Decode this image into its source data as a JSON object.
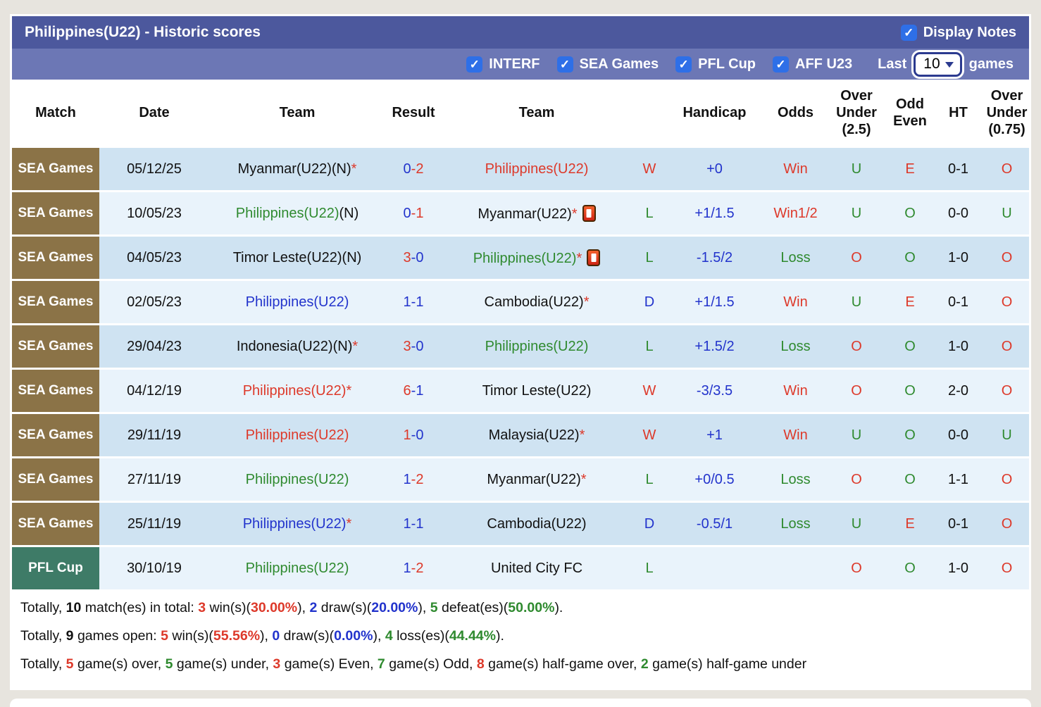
{
  "header": {
    "title": "Philippines(U22) - Historic scores",
    "display_notes_label": "Display Notes"
  },
  "filters": {
    "items": [
      "INTERF",
      "SEA Games",
      "PFL Cup",
      "AFF U23"
    ],
    "last_label": "Last",
    "last_value": "10",
    "games_label": "games"
  },
  "icons": {
    "checkmark": "✓",
    "red_card": "red-card-icon",
    "chevron": "chevron-down-icon"
  },
  "colors": {
    "titlebar": "#4c589d",
    "filterbar": "#6c77b5",
    "checkbox_blue": "#2e6fe7",
    "sea_badge": "#8b7347",
    "pfl_badge": "#3e7b67",
    "row_dark": "#cfe3f2",
    "row_light": "#e9f3fb",
    "win_red": "#dd392a",
    "draw_blue": "#2233cc",
    "loss_green": "#2f8a2f"
  },
  "table": {
    "columns": [
      "Match",
      "Date",
      "Team",
      "Result",
      "Team",
      "",
      "Handicap",
      "Odds",
      "Over Under (2.5)",
      "Odd Even",
      "HT",
      "Over Under (0.75)"
    ],
    "rows": [
      {
        "comp": "SEA Games",
        "comp_class": "sea",
        "date": "05/12/25",
        "t1": {
          "name": "Myanmar(U22)",
          "extra": "(N)",
          "color": "black",
          "star": true,
          "card": false
        },
        "res": {
          "a": "0",
          "b": "2",
          "ca": "blue",
          "cb": "red"
        },
        "t2": {
          "name": "Philippines(U22)",
          "extra": "",
          "color": "red",
          "star": false,
          "card": false
        },
        "wdl": {
          "t": "W",
          "c": "red"
        },
        "hcp": "+0",
        "odds": {
          "t": "Win",
          "c": "red"
        },
        "ou25": {
          "t": "U",
          "c": "green"
        },
        "oe": {
          "t": "E",
          "c": "red"
        },
        "ht": "0-1",
        "ou075": {
          "t": "O",
          "c": "red"
        }
      },
      {
        "comp": "SEA Games",
        "comp_class": "sea",
        "date": "10/05/23",
        "t1": {
          "name": "Philippines(U22)",
          "extra": "(N)",
          "color": "green",
          "star": false,
          "card": false
        },
        "res": {
          "a": "0",
          "b": "1",
          "ca": "blue",
          "cb": "red"
        },
        "t2": {
          "name": "Myanmar(U22)",
          "extra": "",
          "color": "black",
          "star": true,
          "card": true
        },
        "wdl": {
          "t": "L",
          "c": "green"
        },
        "hcp": "+1/1.5",
        "odds": {
          "t": "Win1/2",
          "c": "red"
        },
        "ou25": {
          "t": "U",
          "c": "green"
        },
        "oe": {
          "t": "O",
          "c": "green"
        },
        "ht": "0-0",
        "ou075": {
          "t": "U",
          "c": "green"
        }
      },
      {
        "comp": "SEA Games",
        "comp_class": "sea",
        "date": "04/05/23",
        "t1": {
          "name": "Timor Leste(U22)",
          "extra": "(N)",
          "color": "black",
          "star": false,
          "card": false
        },
        "res": {
          "a": "3",
          "b": "0",
          "ca": "red",
          "cb": "blue"
        },
        "t2": {
          "name": "Philippines(U22)",
          "extra": "",
          "color": "green",
          "star": true,
          "card": true
        },
        "wdl": {
          "t": "L",
          "c": "green"
        },
        "hcp": "-1.5/2",
        "odds": {
          "t": "Loss",
          "c": "green"
        },
        "ou25": {
          "t": "O",
          "c": "red"
        },
        "oe": {
          "t": "O",
          "c": "green"
        },
        "ht": "1-0",
        "ou075": {
          "t": "O",
          "c": "red"
        }
      },
      {
        "comp": "SEA Games",
        "comp_class": "sea",
        "date": "02/05/23",
        "t1": {
          "name": "Philippines(U22)",
          "extra": "",
          "color": "blue",
          "star": false,
          "card": false
        },
        "res": {
          "a": "1",
          "b": "1",
          "ca": "blue",
          "cb": "blue"
        },
        "t2": {
          "name": "Cambodia(U22)",
          "extra": "",
          "color": "black",
          "star": true,
          "card": false
        },
        "wdl": {
          "t": "D",
          "c": "blue"
        },
        "hcp": "+1/1.5",
        "odds": {
          "t": "Win",
          "c": "red"
        },
        "ou25": {
          "t": "U",
          "c": "green"
        },
        "oe": {
          "t": "E",
          "c": "red"
        },
        "ht": "0-1",
        "ou075": {
          "t": "O",
          "c": "red"
        }
      },
      {
        "comp": "SEA Games",
        "comp_class": "sea",
        "date": "29/04/23",
        "t1": {
          "name": "Indonesia(U22)",
          "extra": "(N)",
          "color": "black",
          "star": true,
          "card": false
        },
        "res": {
          "a": "3",
          "b": "0",
          "ca": "red",
          "cb": "blue"
        },
        "t2": {
          "name": "Philippines(U22)",
          "extra": "",
          "color": "green",
          "star": false,
          "card": false
        },
        "wdl": {
          "t": "L",
          "c": "green"
        },
        "hcp": "+1.5/2",
        "odds": {
          "t": "Loss",
          "c": "green"
        },
        "ou25": {
          "t": "O",
          "c": "red"
        },
        "oe": {
          "t": "O",
          "c": "green"
        },
        "ht": "1-0",
        "ou075": {
          "t": "O",
          "c": "red"
        }
      },
      {
        "comp": "SEA Games",
        "comp_class": "sea",
        "date": "04/12/19",
        "t1": {
          "name": "Philippines(U22)",
          "extra": "",
          "color": "red",
          "star": true,
          "card": false
        },
        "res": {
          "a": "6",
          "b": "1",
          "ca": "red",
          "cb": "blue"
        },
        "t2": {
          "name": "Timor Leste(U22)",
          "extra": "",
          "color": "black",
          "star": false,
          "card": false
        },
        "wdl": {
          "t": "W",
          "c": "red"
        },
        "hcp": "-3/3.5",
        "odds": {
          "t": "Win",
          "c": "red"
        },
        "ou25": {
          "t": "O",
          "c": "red"
        },
        "oe": {
          "t": "O",
          "c": "green"
        },
        "ht": "2-0",
        "ou075": {
          "t": "O",
          "c": "red"
        }
      },
      {
        "comp": "SEA Games",
        "comp_class": "sea",
        "date": "29/11/19",
        "t1": {
          "name": "Philippines(U22)",
          "extra": "",
          "color": "red",
          "star": false,
          "card": false
        },
        "res": {
          "a": "1",
          "b": "0",
          "ca": "red",
          "cb": "blue"
        },
        "t2": {
          "name": "Malaysia(U22)",
          "extra": "",
          "color": "black",
          "star": true,
          "card": false
        },
        "wdl": {
          "t": "W",
          "c": "red"
        },
        "hcp": "+1",
        "odds": {
          "t": "Win",
          "c": "red"
        },
        "ou25": {
          "t": "U",
          "c": "green"
        },
        "oe": {
          "t": "O",
          "c": "green"
        },
        "ht": "0-0",
        "ou075": {
          "t": "U",
          "c": "green"
        }
      },
      {
        "comp": "SEA Games",
        "comp_class": "sea",
        "date": "27/11/19",
        "t1": {
          "name": "Philippines(U22)",
          "extra": "",
          "color": "green",
          "star": false,
          "card": false
        },
        "res": {
          "a": "1",
          "b": "2",
          "ca": "blue",
          "cb": "red"
        },
        "t2": {
          "name": "Myanmar(U22)",
          "extra": "",
          "color": "black",
          "star": true,
          "card": false
        },
        "wdl": {
          "t": "L",
          "c": "green"
        },
        "hcp": "+0/0.5",
        "odds": {
          "t": "Loss",
          "c": "green"
        },
        "ou25": {
          "t": "O",
          "c": "red"
        },
        "oe": {
          "t": "O",
          "c": "green"
        },
        "ht": "1-1",
        "ou075": {
          "t": "O",
          "c": "red"
        }
      },
      {
        "comp": "SEA Games",
        "comp_class": "sea",
        "date": "25/11/19",
        "t1": {
          "name": "Philippines(U22)",
          "extra": "",
          "color": "blue",
          "star": true,
          "card": false
        },
        "res": {
          "a": "1",
          "b": "1",
          "ca": "blue",
          "cb": "blue"
        },
        "t2": {
          "name": "Cambodia(U22)",
          "extra": "",
          "color": "black",
          "star": false,
          "card": false
        },
        "wdl": {
          "t": "D",
          "c": "blue"
        },
        "hcp": "-0.5/1",
        "odds": {
          "t": "Loss",
          "c": "green"
        },
        "ou25": {
          "t": "U",
          "c": "green"
        },
        "oe": {
          "t": "E",
          "c": "red"
        },
        "ht": "0-1",
        "ou075": {
          "t": "O",
          "c": "red"
        }
      },
      {
        "comp": "PFL Cup",
        "comp_class": "pfl",
        "date": "30/10/19",
        "t1": {
          "name": "Philippines(U22)",
          "extra": "",
          "color": "green",
          "star": false,
          "card": false
        },
        "res": {
          "a": "1",
          "b": "2",
          "ca": "blue",
          "cb": "red"
        },
        "t2": {
          "name": "United City FC",
          "extra": "",
          "color": "black",
          "star": false,
          "card": false
        },
        "wdl": {
          "t": "L",
          "c": "green"
        },
        "hcp": "",
        "odds": {
          "t": "",
          "c": "black"
        },
        "ou25": {
          "t": "O",
          "c": "red"
        },
        "oe": {
          "t": "O",
          "c": "green"
        },
        "ht": "1-0",
        "ou075": {
          "t": "O",
          "c": "red"
        }
      }
    ]
  },
  "summary": {
    "lines": [
      [
        {
          "t": "Totally, "
        },
        {
          "t": "10",
          "b": true
        },
        {
          "t": " match(es) in total: "
        },
        {
          "t": "3",
          "c": "red",
          "b": true
        },
        {
          "t": " win(s)("
        },
        {
          "t": "30.00%",
          "c": "red",
          "b": true
        },
        {
          "t": "), "
        },
        {
          "t": "2",
          "c": "blue",
          "b": true
        },
        {
          "t": " draw(s)("
        },
        {
          "t": "20.00%",
          "c": "blue",
          "b": true
        },
        {
          "t": "), "
        },
        {
          "t": "5",
          "c": "green",
          "b": true
        },
        {
          "t": " defeat(es)("
        },
        {
          "t": "50.00%",
          "c": "green",
          "b": true
        },
        {
          "t": ")."
        }
      ],
      [
        {
          "t": "Totally, "
        },
        {
          "t": "9",
          "b": true
        },
        {
          "t": " games open: "
        },
        {
          "t": "5",
          "c": "red",
          "b": true
        },
        {
          "t": " win(s)("
        },
        {
          "t": "55.56%",
          "c": "red",
          "b": true
        },
        {
          "t": "), "
        },
        {
          "t": "0",
          "c": "blue",
          "b": true
        },
        {
          "t": " draw(s)("
        },
        {
          "t": "0.00%",
          "c": "blue",
          "b": true
        },
        {
          "t": "), "
        },
        {
          "t": "4",
          "c": "green",
          "b": true
        },
        {
          "t": " loss(es)("
        },
        {
          "t": "44.44%",
          "c": "green",
          "b": true
        },
        {
          "t": ")."
        }
      ],
      [
        {
          "t": "Totally, "
        },
        {
          "t": "5",
          "c": "red",
          "b": true
        },
        {
          "t": " game(s) over, "
        },
        {
          "t": "5",
          "c": "green",
          "b": true
        },
        {
          "t": " game(s) under, "
        },
        {
          "t": "3",
          "c": "red",
          "b": true
        },
        {
          "t": " game(s) Even, "
        },
        {
          "t": "7",
          "c": "green",
          "b": true
        },
        {
          "t": " game(s) Odd, "
        },
        {
          "t": "8",
          "c": "red",
          "b": true
        },
        {
          "t": " game(s) half-game over, "
        },
        {
          "t": "2",
          "c": "green",
          "b": true
        },
        {
          "t": " game(s) half-game under"
        }
      ]
    ]
  }
}
